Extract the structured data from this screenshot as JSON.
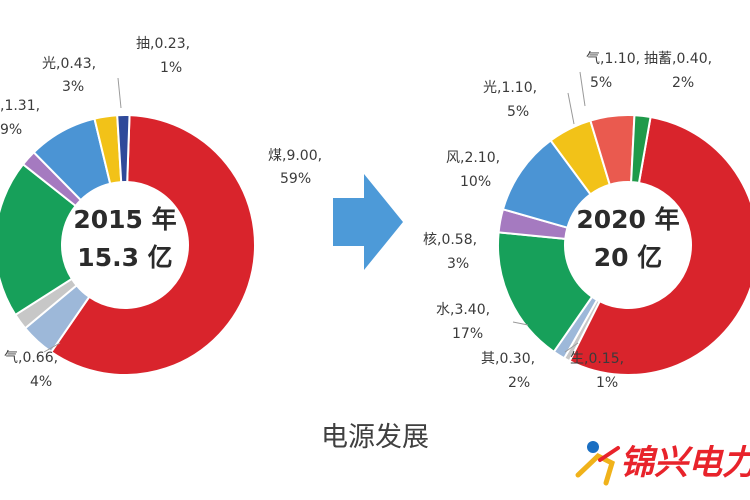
{
  "colors": {
    "coal": "#d9242c",
    "gas": "#9db8d9",
    "other": "#c7c7c7",
    "hydro": "#17a05a",
    "nuclear": "#a57ac0",
    "wind": "#4b94d4",
    "solar": "#f2c218",
    "pumped": "#2f4a9a",
    "pumped2020": "#1f9a4a",
    "gas2020": "#ea5a4f",
    "arrow": "#4d9ad8",
    "logo": "#e8232b"
  },
  "caption": "电源发展",
  "logo": {
    "text": "锦兴电力"
  },
  "chart_data": [
    {
      "type": "pie",
      "center_line1": "2015 年",
      "center_line2": "15.3 亿",
      "slices": [
        {
          "name": "煤",
          "value": 9.0,
          "pct": "59%",
          "color_key": "coal"
        },
        {
          "name": "气",
          "value": 0.66,
          "pct": "4%",
          "color_key": "gas"
        },
        {
          "name": "",
          "value": 0.31,
          "pct": "",
          "color_key": "other"
        },
        {
          "name": "",
          "value": 3.0,
          "pct": "",
          "color_key": "hydro"
        },
        {
          "name": "",
          "value": 0.3,
          "pct": "",
          "color_key": "nuclear"
        },
        {
          "name": "",
          "value": 1.31,
          "pct": "9%",
          "color_key": "wind"
        },
        {
          "name": "光",
          "value": 0.43,
          "pct": "3%",
          "color_key": "solar"
        },
        {
          "name": "抽",
          "value": 0.23,
          "pct": "1%",
          "color_key": "pumped"
        }
      ],
      "labels": [
        {
          "line1": "煤,9.00,",
          "line2": "59%"
        },
        {
          "line1": "气,0.66,",
          "line2": "4%"
        },
        {
          "line1": ",1.31,",
          "line2": "9%"
        },
        {
          "line1": "光,0.43,",
          "line2": "3%"
        },
        {
          "line1": "抽,0.23,",
          "line2": "1%"
        }
      ]
    },
    {
      "type": "pie",
      "center_line1": "2020 年",
      "center_line2": "20 亿",
      "slices": [
        {
          "name": "煤",
          "value": 11.0,
          "pct": "",
          "color_key": "coal"
        },
        {
          "name": "生",
          "value": 0.15,
          "pct": "1%",
          "color_key": "other"
        },
        {
          "name": "其",
          "value": 0.3,
          "pct": "2%",
          "color_key": "gas"
        },
        {
          "name": "水",
          "value": 3.4,
          "pct": "17%",
          "color_key": "hydro"
        },
        {
          "name": "核",
          "value": 0.58,
          "pct": "3%",
          "color_key": "nuclear"
        },
        {
          "name": "风",
          "value": 2.1,
          "pct": "10%",
          "color_key": "wind"
        },
        {
          "name": "光",
          "value": 1.1,
          "pct": "5%",
          "color_key": "solar"
        },
        {
          "name": "气",
          "value": 1.1,
          "pct": "5%",
          "color_key": "gas2020"
        },
        {
          "name": "抽蓄",
          "value": 0.4,
          "pct": "2%",
          "color_key": "pumped2020"
        }
      ],
      "labels": [
        {
          "line1": "气,1.10,",
          "line2": "5%"
        },
        {
          "line1": "抽蓄,0.40,",
          "line2": "2%"
        },
        {
          "line1": "光,1.10,",
          "line2": "5%"
        },
        {
          "line1": "风,2.10,",
          "line2": "10%"
        },
        {
          "line1": "核,0.58,",
          "line2": "3%"
        },
        {
          "line1": "水,3.40,",
          "line2": "17%"
        },
        {
          "line1": "其,0.30,",
          "line2": "2%"
        },
        {
          "line1": "生,0.15,",
          "line2": "1%"
        }
      ]
    }
  ]
}
